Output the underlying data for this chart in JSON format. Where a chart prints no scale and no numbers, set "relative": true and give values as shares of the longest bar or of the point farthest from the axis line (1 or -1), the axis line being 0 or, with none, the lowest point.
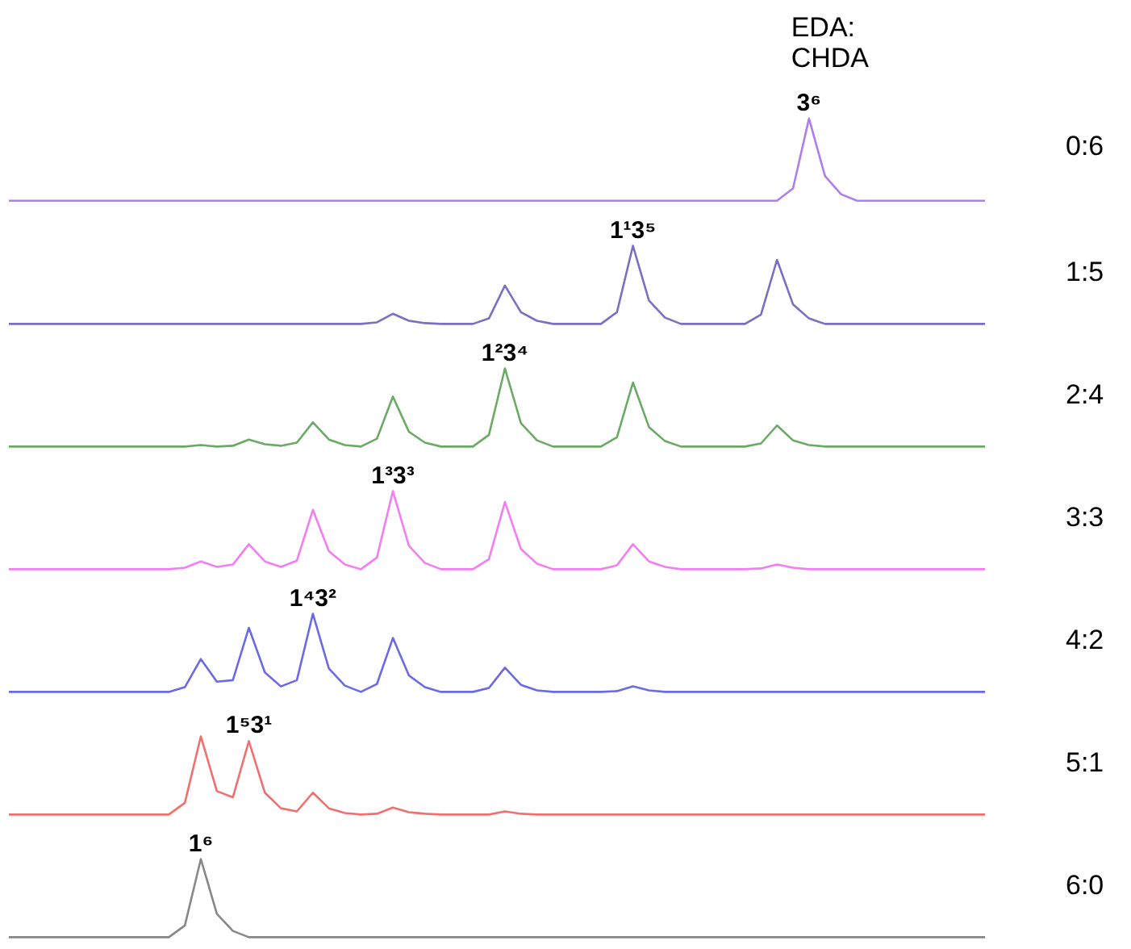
{
  "chart_data": [
    {
      "type": "line",
      "relative": true,
      "legend_title": "EDA:\nCHDA",
      "annotations": [
        {
          "text": "3⁶",
          "y": 1
        }
      ],
      "categories": [
        null,
        null,
        null,
        null,
        null,
        null,
        null,
        null,
        null,
        null,
        null,
        null,
        null,
        null,
        null,
        null,
        null,
        null,
        null,
        null,
        null,
        null,
        null,
        null,
        null,
        null,
        null,
        null,
        null,
        null,
        null,
        null,
        null,
        null,
        null,
        null,
        null,
        null,
        null,
        null,
        null,
        null,
        null,
        null,
        null,
        null,
        null,
        null,
        null,
        null,
        null,
        null,
        null,
        null,
        null,
        null,
        null,
        null,
        null,
        null,
        null,
        null
      ],
      "series": [
        {
          "name": "0:6",
          "color": "#b07ee8",
          "values": [
            0,
            0,
            0,
            0,
            0,
            0,
            0,
            0,
            0,
            0,
            0,
            0,
            0,
            0,
            0,
            0,
            0,
            0,
            0,
            0,
            0,
            0,
            0,
            0,
            0,
            0,
            0,
            0,
            0,
            0,
            0,
            0,
            0,
            0,
            0,
            0,
            0,
            0,
            0,
            0,
            0,
            0,
            0,
            0,
            0,
            0,
            0,
            0,
            0,
            0.15,
            1,
            0.3,
            0.08,
            0,
            0,
            0,
            0,
            0,
            0,
            0,
            0,
            0
          ]
        }
      ]
    },
    {
      "type": "line",
      "relative": true,
      "annotations": [
        {
          "text": "1¹3⁵",
          "y": 1
        }
      ],
      "categories": [
        null,
        null,
        null,
        null,
        null,
        null,
        null,
        null,
        null,
        null,
        null,
        null,
        null,
        null,
        null,
        null,
        null,
        null,
        null,
        null,
        null,
        null,
        null,
        null,
        null,
        null,
        null,
        null,
        null,
        null,
        null,
        null,
        null,
        null,
        null,
        null,
        null,
        null,
        null,
        null,
        null,
        null,
        null,
        null,
        null,
        null,
        null,
        null,
        null,
        null,
        null,
        null,
        null,
        null,
        null,
        null,
        null,
        null,
        null,
        null,
        null,
        null
      ],
      "series": [
        {
          "name": "1:5",
          "color": "#7a6fc0",
          "values": [
            0,
            0,
            0,
            0,
            0,
            0,
            0,
            0,
            0,
            0,
            0,
            0,
            0,
            0,
            0,
            0,
            0,
            0,
            0,
            0,
            0,
            0,
            0,
            0.02,
            0.13,
            0.04,
            0.01,
            0,
            0,
            0,
            0.07,
            0.49,
            0.15,
            0.04,
            0,
            0,
            0,
            0,
            0.15,
            1,
            0.3,
            0.08,
            0,
            0,
            0,
            0,
            0,
            0.12,
            0.82,
            0.25,
            0.07,
            0,
            0,
            0,
            0,
            0,
            0,
            0,
            0,
            0,
            0,
            0
          ]
        }
      ]
    },
    {
      "type": "line",
      "relative": true,
      "annotations": [
        {
          "text": "1²3⁴",
          "y": 1
        }
      ],
      "categories": [
        null,
        null,
        null,
        null,
        null,
        null,
        null,
        null,
        null,
        null,
        null,
        null,
        null,
        null,
        null,
        null,
        null,
        null,
        null,
        null,
        null,
        null,
        null,
        null,
        null,
        null,
        null,
        null,
        null,
        null,
        null,
        null,
        null,
        null,
        null,
        null,
        null,
        null,
        null,
        null,
        null,
        null,
        null,
        null,
        null,
        null,
        null,
        null,
        null,
        null,
        null,
        null,
        null,
        null,
        null,
        null,
        null,
        null,
        null,
        null,
        null,
        null
      ],
      "series": [
        {
          "name": "2:4",
          "color": "#6aaa64",
          "values": [
            0,
            0,
            0,
            0,
            0,
            0,
            0,
            0,
            0,
            0,
            0,
            0,
            0.02,
            0,
            0.01,
            0.09,
            0.03,
            0.01,
            0.05,
            0.31,
            0.09,
            0.02,
            0,
            0.1,
            0.64,
            0.19,
            0.05,
            0,
            0,
            0,
            0.15,
            1,
            0.3,
            0.08,
            0,
            0,
            0,
            0,
            0.12,
            0.82,
            0.25,
            0.07,
            0,
            0,
            0,
            0,
            0,
            0.04,
            0.27,
            0.08,
            0.02,
            0,
            0,
            0,
            0,
            0,
            0,
            0,
            0,
            0,
            0,
            0
          ]
        }
      ]
    },
    {
      "type": "line",
      "relative": true,
      "annotations": [
        {
          "text": "1³3³",
          "y": 1
        }
      ],
      "categories": [
        null,
        null,
        null,
        null,
        null,
        null,
        null,
        null,
        null,
        null,
        null,
        null,
        null,
        null,
        null,
        null,
        null,
        null,
        null,
        null,
        null,
        null,
        null,
        null,
        null,
        null,
        null,
        null,
        null,
        null,
        null,
        null,
        null,
        null,
        null,
        null,
        null,
        null,
        null,
        null,
        null,
        null,
        null,
        null,
        null,
        null,
        null,
        null,
        null,
        null,
        null,
        null,
        null,
        null,
        null,
        null,
        null,
        null,
        null,
        null,
        null,
        null
      ],
      "series": [
        {
          "name": "3:3",
          "color": "#f27ef2",
          "values": [
            0,
            0,
            0,
            0,
            0,
            0,
            0,
            0,
            0,
            0,
            0,
            0.02,
            0.1,
            0.03,
            0.06,
            0.32,
            0.1,
            0.03,
            0.11,
            0.76,
            0.23,
            0.06,
            0,
            0.15,
            1,
            0.3,
            0.08,
            0,
            0,
            0,
            0.13,
            0.86,
            0.26,
            0.07,
            0,
            0,
            0,
            0,
            0.05,
            0.32,
            0.1,
            0.03,
            0,
            0,
            0,
            0,
            0,
            0.01,
            0.06,
            0.02,
            0,
            0,
            0,
            0,
            0,
            0,
            0,
            0,
            0,
            0,
            0,
            0
          ]
        }
      ]
    },
    {
      "type": "line",
      "relative": true,
      "annotations": [
        {
          "text": "1⁴3²",
          "y": 1
        }
      ],
      "categories": [
        null,
        null,
        null,
        null,
        null,
        null,
        null,
        null,
        null,
        null,
        null,
        null,
        null,
        null,
        null,
        null,
        null,
        null,
        null,
        null,
        null,
        null,
        null,
        null,
        null,
        null,
        null,
        null,
        null,
        null,
        null,
        null,
        null,
        null,
        null,
        null,
        null,
        null,
        null,
        null,
        null,
        null,
        null,
        null,
        null,
        null,
        null,
        null,
        null,
        null,
        null,
        null,
        null,
        null,
        null,
        null,
        null,
        null,
        null,
        null,
        null,
        null
      ],
      "series": [
        {
          "name": "4:2",
          "color": "#6a6ae8",
          "values": [
            0,
            0,
            0,
            0,
            0,
            0,
            0,
            0,
            0,
            0,
            0,
            0.06,
            0.42,
            0.13,
            0.15,
            0.82,
            0.25,
            0.07,
            0.15,
            1,
            0.3,
            0.08,
            0,
            0.1,
            0.69,
            0.21,
            0.06,
            0,
            0,
            0,
            0.05,
            0.31,
            0.09,
            0.02,
            0,
            0,
            0,
            0,
            0.01,
            0.07,
            0.02,
            0,
            0,
            0,
            0,
            0,
            0,
            0,
            0,
            0,
            0,
            0,
            0,
            0,
            0,
            0,
            0,
            0,
            0,
            0,
            0,
            0
          ]
        }
      ]
    },
    {
      "type": "line",
      "relative": true,
      "annotations": [
        {
          "text": "1⁵3¹",
          "y": 0.94
        }
      ],
      "categories": [
        null,
        null,
        null,
        null,
        null,
        null,
        null,
        null,
        null,
        null,
        null,
        null,
        null,
        null,
        null,
        null,
        null,
        null,
        null,
        null,
        null,
        null,
        null,
        null,
        null,
        null,
        null,
        null,
        null,
        null,
        null,
        null,
        null,
        null,
        null,
        null,
        null,
        null,
        null,
        null,
        null,
        null,
        null,
        null,
        null,
        null,
        null,
        null,
        null,
        null,
        null,
        null,
        null,
        null,
        null,
        null,
        null,
        null,
        null,
        null,
        null,
        null
      ],
      "series": [
        {
          "name": "5:1",
          "color": "#f07070",
          "values": [
            0,
            0,
            0,
            0,
            0,
            0,
            0,
            0,
            0,
            0,
            0,
            0.15,
            1,
            0.3,
            0.22,
            0.94,
            0.28,
            0.08,
            0.04,
            0.28,
            0.08,
            0.02,
            0,
            0.01,
            0.09,
            0.03,
            0.01,
            0,
            0,
            0,
            0,
            0.04,
            0.01,
            0,
            0,
            0,
            0,
            0,
            0,
            0,
            0,
            0,
            0,
            0,
            0,
            0,
            0,
            0,
            0,
            0,
            0,
            0,
            0,
            0,
            0,
            0,
            0,
            0,
            0,
            0,
            0,
            0
          ]
        }
      ]
    },
    {
      "type": "line",
      "relative": true,
      "annotations": [
        {
          "text": "1⁶",
          "y": 1
        }
      ],
      "categories": [
        null,
        null,
        null,
        null,
        null,
        null,
        null,
        null,
        null,
        null,
        null,
        null,
        null,
        null,
        null,
        null,
        null,
        null,
        null,
        null,
        null,
        null,
        null,
        null,
        null,
        null,
        null,
        null,
        null,
        null,
        null,
        null,
        null,
        null,
        null,
        null,
        null,
        null,
        null,
        null,
        null,
        null,
        null,
        null,
        null,
        null,
        null,
        null,
        null,
        null,
        null,
        null,
        null,
        null,
        null,
        null,
        null,
        null,
        null,
        null,
        null,
        null
      ],
      "series": [
        {
          "name": "6:0",
          "color": "#888888",
          "values": [
            0,
            0,
            0,
            0,
            0,
            0,
            0,
            0,
            0,
            0,
            0,
            0.15,
            1,
            0.3,
            0.08,
            0,
            0,
            0,
            0,
            0,
            0,
            0,
            0,
            0,
            0,
            0,
            0,
            0,
            0,
            0,
            0,
            0,
            0,
            0,
            0,
            0,
            0,
            0,
            0,
            0,
            0,
            0,
            0,
            0,
            0,
            0,
            0,
            0,
            0,
            0,
            0,
            0,
            0,
            0,
            0,
            0,
            0,
            0,
            0,
            0,
            0,
            0
          ]
        }
      ]
    }
  ]
}
